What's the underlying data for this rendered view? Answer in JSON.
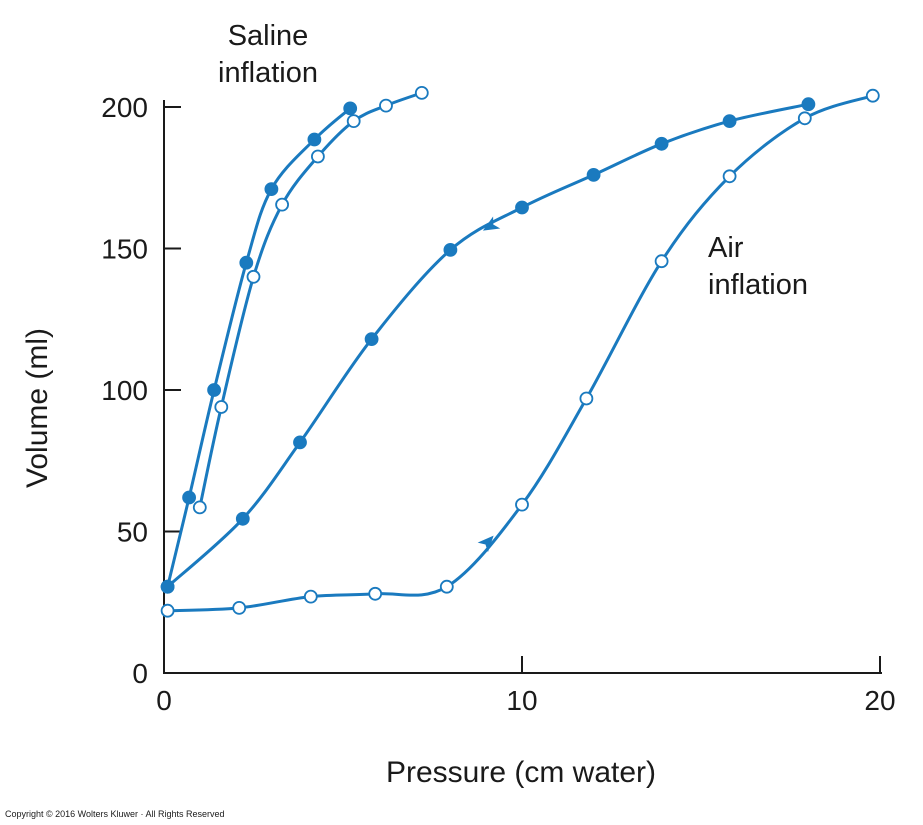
{
  "chart_data": {
    "type": "line",
    "title": "",
    "xlabel": "Pressure (cm water)",
    "ylabel": "Volume (ml)",
    "xlim": [
      0,
      20
    ],
    "ylim": [
      0,
      200
    ],
    "x_ticks": [
      0,
      10,
      20
    ],
    "y_ticks": [
      0,
      50,
      100,
      150,
      200
    ],
    "grid": false,
    "color": "#1a7abf",
    "annotations": {
      "saline_line1": "Saline",
      "saline_line2": "inflation",
      "air_line1": "Air",
      "air_line2": "inflation"
    },
    "series": [
      {
        "group": "saline",
        "direction": "deflation",
        "marker": "filled",
        "x": [
          0.1,
          0.7,
          1.4,
          2.3,
          3.0,
          4.2,
          5.2
        ],
        "y": [
          30.5,
          62,
          100,
          145,
          171,
          188.5,
          199.5
        ]
      },
      {
        "group": "saline",
        "direction": "inflation",
        "marker": "open",
        "x": [
          1.0,
          1.6,
          2.5,
          3.3,
          4.3,
          5.3,
          6.2,
          7.2
        ],
        "y": [
          58.5,
          94,
          140,
          165.5,
          182.5,
          195,
          200.5,
          205
        ]
      },
      {
        "group": "air",
        "direction": "deflation",
        "marker": "filled",
        "x": [
          0.1,
          2.2,
          3.8,
          5.8,
          8.0,
          10.0,
          12.0,
          13.9,
          15.8,
          18.0
        ],
        "y": [
          30.5,
          54.5,
          81.5,
          118,
          149.5,
          164.5,
          176,
          187,
          195,
          201
        ]
      },
      {
        "group": "air",
        "direction": "inflation",
        "marker": "open",
        "x": [
          0.1,
          2.1,
          4.1,
          5.9,
          7.9,
          10.0,
          11.8,
          13.9,
          15.8,
          17.9,
          19.8
        ],
        "y": [
          22,
          23,
          27,
          28,
          30.5,
          59.5,
          97,
          145.5,
          175.5,
          196,
          204
        ]
      }
    ]
  },
  "copyright": "Copyright © 2016 Wolters Kluwer · All Rights Reserved"
}
